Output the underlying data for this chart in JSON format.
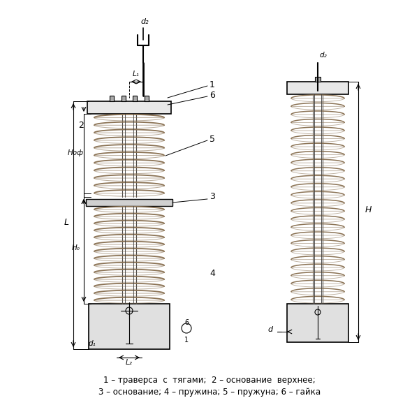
{
  "bg_color": "#ffffff",
  "line_color": "#000000",
  "spring_color": "#8B7355",
  "caption_line1": "1 – траверса  с  тягами;  2 – основание  верхнее;",
  "caption_line2": "3 – основание; 4 – пружина; 5 – пружуна; 6 – гайка",
  "labels": {
    "d2": "d₂",
    "L1": "L₁",
    "L2": "L₂",
    "d1": "d₁",
    "Hof": "Hоф",
    "H0": "H₀",
    "L": "L",
    "H": "H",
    "d": "d",
    "num1": "1",
    "num2": "2",
    "num3": "3",
    "num4": "4",
    "num5": "5",
    "num6": "6"
  }
}
